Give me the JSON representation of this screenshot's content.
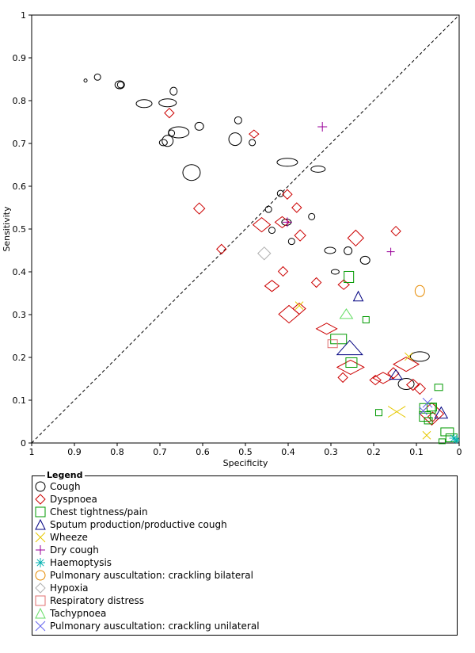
{
  "chart_data": {
    "type": "scatter",
    "title": "",
    "xlabel": "Specificity",
    "ylabel": "Sensitivity",
    "xlim": [
      1,
      0
    ],
    "ylim": [
      0,
      1
    ],
    "xticks": [
      "1",
      "0.9",
      "0.8",
      "0.7",
      "0.6",
      "0.5",
      "0.4",
      "0.3",
      "0.2",
      "0.1",
      "0"
    ],
    "yticks": [
      "0",
      "0.1",
      "0.2",
      "0.3",
      "0.4",
      "0.5",
      "0.6",
      "0.7",
      "0.8",
      "0.9",
      "1"
    ],
    "diagonal": "dashed line of no discrimination",
    "legend_title": "Legend",
    "legend_position": "bottom",
    "series": [
      {
        "name": "Cough",
        "marker": "circle",
        "color": "#000000",
        "points": [
          {
            "x": 0.846,
            "y": 0.855,
            "w": 8,
            "h": 8
          },
          {
            "x": 0.874,
            "y": 0.847,
            "w": 4,
            "h": 4
          },
          {
            "x": 0.794,
            "y": 0.837,
            "w": 12,
            "h": 10
          },
          {
            "x": 0.792,
            "y": 0.837,
            "w": 8,
            "h": 8
          },
          {
            "x": 0.668,
            "y": 0.822,
            "w": 9,
            "h": 10
          },
          {
            "x": 0.682,
            "y": 0.795,
            "w": 22,
            "h": 10
          },
          {
            "x": 0.737,
            "y": 0.793,
            "w": 20,
            "h": 10
          },
          {
            "x": 0.517,
            "y": 0.754,
            "w": 9,
            "h": 9
          },
          {
            "x": 0.608,
            "y": 0.74,
            "w": 11,
            "h": 10
          },
          {
            "x": 0.656,
            "y": 0.726,
            "w": 26,
            "h": 14
          },
          {
            "x": 0.673,
            "y": 0.724,
            "w": 8,
            "h": 8
          },
          {
            "x": 0.524,
            "y": 0.71,
            "w": 16,
            "h": 16
          },
          {
            "x": 0.682,
            "y": 0.706,
            "w": 14,
            "h": 14
          },
          {
            "x": 0.692,
            "y": 0.702,
            "w": 10,
            "h": 8
          },
          {
            "x": 0.484,
            "y": 0.702,
            "w": 8,
            "h": 8
          },
          {
            "x": 0.402,
            "y": 0.656,
            "w": 26,
            "h": 10
          },
          {
            "x": 0.33,
            "y": 0.64,
            "w": 18,
            "h": 8
          },
          {
            "x": 0.626,
            "y": 0.632,
            "w": 22,
            "h": 20
          },
          {
            "x": 0.418,
            "y": 0.583,
            "w": 8,
            "h": 8
          },
          {
            "x": 0.345,
            "y": 0.529,
            "w": 8,
            "h": 8
          },
          {
            "x": 0.446,
            "y": 0.546,
            "w": 8,
            "h": 8
          },
          {
            "x": 0.404,
            "y": 0.516,
            "w": 12,
            "h": 8
          },
          {
            "x": 0.392,
            "y": 0.471,
            "w": 8,
            "h": 8
          },
          {
            "x": 0.438,
            "y": 0.497,
            "w": 8,
            "h": 8
          },
          {
            "x": 0.22,
            "y": 0.427,
            "w": 12,
            "h": 10
          },
          {
            "x": 0.26,
            "y": 0.449,
            "w": 10,
            "h": 10
          },
          {
            "x": 0.302,
            "y": 0.45,
            "w": 14,
            "h": 8
          },
          {
            "x": 0.29,
            "y": 0.4,
            "w": 10,
            "h": 6
          },
          {
            "x": 0.092,
            "y": 0.202,
            "w": 24,
            "h": 12
          },
          {
            "x": 0.124,
            "y": 0.138,
            "w": 20,
            "h": 14
          }
        ]
      },
      {
        "name": "Dyspnoea",
        "marker": "diamond",
        "color": "#cc0000",
        "points": [
          {
            "x": 0.678,
            "y": 0.771,
            "w": 12,
            "h": 12
          },
          {
            "x": 0.48,
            "y": 0.722,
            "w": 12,
            "h": 10
          },
          {
            "x": 0.402,
            "y": 0.581,
            "w": 12,
            "h": 12
          },
          {
            "x": 0.38,
            "y": 0.55,
            "w": 12,
            "h": 12
          },
          {
            "x": 0.608,
            "y": 0.548,
            "w": 14,
            "h": 14
          },
          {
            "x": 0.372,
            "y": 0.485,
            "w": 14,
            "h": 14
          },
          {
            "x": 0.414,
            "y": 0.516,
            "w": 18,
            "h": 14
          },
          {
            "x": 0.462,
            "y": 0.51,
            "w": 22,
            "h": 18
          },
          {
            "x": 0.242,
            "y": 0.479,
            "w": 20,
            "h": 20
          },
          {
            "x": 0.556,
            "y": 0.453,
            "w": 12,
            "h": 12
          },
          {
            "x": 0.148,
            "y": 0.495,
            "w": 12,
            "h": 12
          },
          {
            "x": 0.412,
            "y": 0.401,
            "w": 12,
            "h": 12
          },
          {
            "x": 0.334,
            "y": 0.375,
            "w": 12,
            "h": 12
          },
          {
            "x": 0.27,
            "y": 0.37,
            "w": 14,
            "h": 12
          },
          {
            "x": 0.438,
            "y": 0.367,
            "w": 18,
            "h": 14
          },
          {
            "x": 0.374,
            "y": 0.314,
            "w": 16,
            "h": 14
          },
          {
            "x": 0.398,
            "y": 0.301,
            "w": 26,
            "h": 22
          },
          {
            "x": 0.31,
            "y": 0.267,
            "w": 26,
            "h": 14
          },
          {
            "x": 0.124,
            "y": 0.184,
            "w": 32,
            "h": 18
          },
          {
            "x": 0.254,
            "y": 0.177,
            "w": 34,
            "h": 18
          },
          {
            "x": 0.154,
            "y": 0.163,
            "w": 14,
            "h": 14
          },
          {
            "x": 0.178,
            "y": 0.152,
            "w": 26,
            "h": 14
          },
          {
            "x": 0.196,
            "y": 0.147,
            "w": 14,
            "h": 12
          },
          {
            "x": 0.272,
            "y": 0.153,
            "w": 12,
            "h": 12
          },
          {
            "x": 0.108,
            "y": 0.136,
            "w": 16,
            "h": 14
          },
          {
            "x": 0.092,
            "y": 0.127,
            "w": 14,
            "h": 14
          },
          {
            "x": 0.064,
            "y": 0.068,
            "w": 30,
            "h": 28
          },
          {
            "x": 0.062,
            "y": 0.061,
            "w": 12,
            "h": 12
          }
        ]
      },
      {
        "name": "Chest tightness/pain",
        "marker": "square",
        "color": "#009900",
        "points": [
          {
            "x": 0.258,
            "y": 0.388,
            "w": 12,
            "h": 14
          },
          {
            "x": 0.218,
            "y": 0.288,
            "w": 8,
            "h": 8
          },
          {
            "x": 0.282,
            "y": 0.243,
            "w": 20,
            "h": 12
          },
          {
            "x": 0.252,
            "y": 0.188,
            "w": 14,
            "h": 12
          },
          {
            "x": 0.048,
            "y": 0.13,
            "w": 10,
            "h": 8
          },
          {
            "x": 0.188,
            "y": 0.071,
            "w": 8,
            "h": 8
          },
          {
            "x": 0.074,
            "y": 0.081,
            "w": 20,
            "h": 12
          },
          {
            "x": 0.064,
            "y": 0.084,
            "w": 12,
            "h": 10
          },
          {
            "x": 0.08,
            "y": 0.062,
            "w": 14,
            "h": 12
          },
          {
            "x": 0.072,
            "y": 0.052,
            "w": 10,
            "h": 8
          },
          {
            "x": 0.028,
            "y": 0.026,
            "w": 16,
            "h": 10
          },
          {
            "x": 0.018,
            "y": 0.012,
            "w": 14,
            "h": 10
          },
          {
            "x": 0.04,
            "y": 0.004,
            "w": 8,
            "h": 6
          }
        ]
      },
      {
        "name": "Sputum production/productive cough",
        "marker": "triangle",
        "color": "#000080",
        "points": [
          {
            "x": 0.236,
            "y": 0.343,
            "w": 12,
            "h": 12
          },
          {
            "x": 0.256,
            "y": 0.223,
            "w": 32,
            "h": 18
          },
          {
            "x": 0.148,
            "y": 0.16,
            "w": 16,
            "h": 12
          },
          {
            "x": 0.042,
            "y": 0.071,
            "w": 16,
            "h": 14
          }
        ]
      },
      {
        "name": "Wheeze",
        "marker": "x",
        "color": "#e6c800",
        "points": [
          {
            "x": 0.374,
            "y": 0.321,
            "w": 10,
            "h": 10
          },
          {
            "x": 0.118,
            "y": 0.202,
            "w": 10,
            "h": 10
          },
          {
            "x": 0.146,
            "y": 0.073,
            "w": 22,
            "h": 14
          },
          {
            "x": 0.076,
            "y": 0.018,
            "w": 10,
            "h": 10
          }
        ]
      },
      {
        "name": "Dry cough",
        "marker": "plus",
        "color": "#990099",
        "points": [
          {
            "x": 0.16,
            "y": 0.447,
            "w": 10,
            "h": 10
          },
          {
            "x": 0.402,
            "y": 0.516,
            "w": 12,
            "h": 12
          },
          {
            "x": 0.32,
            "y": 0.739,
            "w": 12,
            "h": 12
          }
        ]
      },
      {
        "name": "Haemoptysis",
        "marker": "asterisk",
        "color": "#00b0b0",
        "points": [
          {
            "x": 0.012,
            "y": 0.011,
            "w": 12,
            "h": 12
          },
          {
            "x": 0.006,
            "y": 0.006,
            "w": 8,
            "h": 8
          }
        ]
      },
      {
        "name": "Pulmonary auscultation: crackling bilateral",
        "marker": "circle",
        "color": "#e68a00",
        "points": [
          {
            "x": 0.092,
            "y": 0.355,
            "w": 12,
            "h": 14
          }
        ]
      },
      {
        "name": "Hypoxia",
        "marker": "diamond",
        "color": "#b0b0b0",
        "points": [
          {
            "x": 0.456,
            "y": 0.443,
            "w": 16,
            "h": 16
          }
        ]
      },
      {
        "name": "Respiratory distress",
        "marker": "square",
        "color": "#e07070",
        "points": [
          {
            "x": 0.296,
            "y": 0.232,
            "w": 12,
            "h": 10
          }
        ]
      },
      {
        "name": "Tachypnoea",
        "marker": "triangle",
        "color": "#66dd66",
        "points": [
          {
            "x": 0.264,
            "y": 0.302,
            "w": 16,
            "h": 12
          }
        ]
      },
      {
        "name": "Pulmonary auscultation: crackling unilateral",
        "marker": "x",
        "color": "#6666ee",
        "points": [
          {
            "x": 0.074,
            "y": 0.094,
            "w": 12,
            "h": 12
          },
          {
            "x": 0.084,
            "y": 0.075,
            "w": 10,
            "h": 10
          }
        ]
      }
    ]
  }
}
